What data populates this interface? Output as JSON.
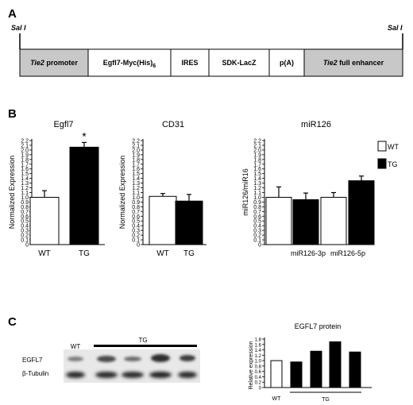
{
  "panels": {
    "A": "A",
    "B": "B",
    "C": "C"
  },
  "construct": {
    "site_left": "Sal I",
    "site_right": "Sal I",
    "segments": [
      {
        "label": "Tie2 promoter",
        "italic_part": "Tie2",
        "rest": " promoter",
        "shaded": true
      },
      {
        "label": "Egfl7-Myc(His)6",
        "main": "Egfl7-Myc(His)",
        "sub": "6",
        "shaded": false
      },
      {
        "label": "IRES",
        "shaded": false
      },
      {
        "label": "SDK-LacZ",
        "shaded": false
      },
      {
        "label": "p(A)",
        "shaded": false
      },
      {
        "label": "Tie2 full enhancer",
        "italic_part": "Tie2",
        "rest": " full enhancer",
        "shaded": true
      }
    ]
  },
  "chart_data": [
    {
      "type": "bar",
      "title": "Egfl7",
      "ylabel": "Normalized Expression",
      "ylim": [
        0,
        2.2
      ],
      "yticks": [
        "0",
        "0.1",
        "0.2",
        "0.3",
        "0.4",
        "0.5",
        "0.6",
        "0.7",
        "0.8",
        "0.9",
        "1.0",
        "1.1",
        "1.2",
        "1.3",
        "1.4",
        "1.5",
        "1.6",
        "1.7",
        "1.8",
        "1.9",
        "2.0",
        "2.1",
        "2.2"
      ],
      "categories": [
        "WT",
        "TG"
      ],
      "values": [
        1.0,
        2.06
      ],
      "errors": [
        0.14,
        0.1
      ],
      "fills": [
        "#ffffff",
        "#000000"
      ],
      "annotations": [
        "",
        "*"
      ]
    },
    {
      "type": "bar",
      "title": "CD31",
      "ylabel": "Normalized Expression",
      "ylim": [
        0,
        2.2
      ],
      "yticks": [
        "0",
        "0.1",
        "0.2",
        "0.3",
        "0.4",
        "0.5",
        "0.6",
        "0.7",
        "0.8",
        "0.9",
        "1.0",
        "1.1",
        "1.2",
        "1.3",
        "1.4",
        "1.5",
        "1.6",
        "1.7",
        "1.8",
        "1.9",
        "2.0",
        "2.1",
        "2.2"
      ],
      "categories": [
        "WT",
        "TG"
      ],
      "values": [
        1.02,
        0.92
      ],
      "errors": [
        0.06,
        0.14
      ],
      "fills": [
        "#ffffff",
        "#000000"
      ]
    },
    {
      "type": "bar",
      "title": "miR126",
      "ylabel": "miR126/miR16",
      "ylim": [
        0,
        2.2
      ],
      "yticks": [
        "0",
        "0.1",
        "0.2",
        "0.3",
        "0.4",
        "0.5",
        "0.6",
        "0.7",
        "0.8",
        "0.9",
        "1.0",
        "1.1",
        "1.2",
        "1.3",
        "1.4",
        "1.5",
        "1.6",
        "1.7",
        "1.8",
        "1.9",
        "2.0",
        "2.1",
        "2.2"
      ],
      "categories": [
        "miR126-3p",
        "miR126-5p"
      ],
      "series": [
        {
          "name": "WT",
          "values": [
            1.0,
            1.0
          ],
          "errors": [
            0.22,
            0.1
          ],
          "fill": "#ffffff"
        },
        {
          "name": "TG",
          "values": [
            0.95,
            1.35
          ],
          "errors": [
            0.14,
            0.1
          ],
          "fill": "#000000"
        }
      ],
      "legend": "top-right"
    },
    {
      "type": "bar",
      "title": "EGFL7 protein",
      "ylabel": "Relative expression",
      "ylim": [
        0,
        1.8
      ],
      "yticks": [
        "0",
        "0.2",
        "0.4",
        "0.6",
        "0.8",
        "1.0",
        "1.2",
        "1.4",
        "1.6",
        "1.8"
      ],
      "values": [
        1.0,
        0.95,
        1.35,
        1.7,
        1.32
      ],
      "fills": [
        "#ffffff",
        "#000000",
        "#000000",
        "#000000",
        "#000000"
      ],
      "group_labels": [
        "WT",
        "TG"
      ]
    }
  ],
  "blot": {
    "lane_groups": [
      "WT",
      "TG"
    ],
    "rows": [
      "EGFL7",
      "β-Tubulin"
    ]
  }
}
